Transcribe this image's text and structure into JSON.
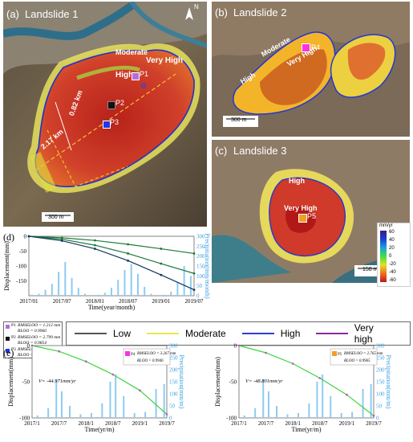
{
  "panels": {
    "a": {
      "tag": "(a)",
      "title": "Landslide 1",
      "zones": {
        "moderate": "Moderate",
        "very_high": "Very High",
        "high": "High"
      },
      "points": [
        "P1",
        "P2",
        "P3"
      ],
      "dims": [
        "0.82 km",
        "2.17 km"
      ],
      "north": "N",
      "scale": "300 m",
      "b_mark": "B"
    },
    "b": {
      "tag": "(b)",
      "title": "Landslide 2",
      "zones": {
        "moderate": "Moderate",
        "very_high": "Very High",
        "high": "High"
      },
      "points": [
        "P4"
      ],
      "scale": "300 m"
    },
    "c": {
      "tag": "(c)",
      "title": "Landslide 3",
      "zones": {
        "high": "High",
        "very_high": "Very High"
      },
      "points": [
        "P5"
      ],
      "scale": "150 m"
    }
  },
  "colorbar": {
    "unit": "mm/yr",
    "ticks": [
      "60",
      "40",
      "20",
      "0",
      "-20",
      "-40",
      "-60"
    ]
  },
  "legend": {
    "items": [
      {
        "label": "Low",
        "color": "#555555"
      },
      {
        "label": "Moderate",
        "color": "#e8e84a"
      },
      {
        "label": "High",
        "color": "#2b3fd6"
      },
      {
        "label": "Very high",
        "color": "#8a2b9a"
      }
    ]
  },
  "stats": [
    {
      "point": "P1",
      "color": "#b26de0",
      "rmse": "RMSE",
      "rmse_sub": "LOO",
      "rmse_val": "= 1.212 mm",
      "r": "R",
      "r_sub": "LOO",
      "r_val": "= 0.9966"
    },
    {
      "point": "P2",
      "color": "#111111",
      "rmse": "RMSE",
      "rmse_sub": "LOO",
      "rmse_val": "= 2.799 mm",
      "r": "R",
      "r_sub": "LOO",
      "r_val": "= 0.9854"
    },
    {
      "point": "P3",
      "color": "#2038e6",
      "rmse": "RMSE",
      "rmse_sub": "LOO",
      "rmse_val": "= 4.811 mm",
      "r": "R",
      "r_sub": "LOO",
      "r_val": "= 0.9954"
    }
  ],
  "panel_d": {
    "tag": "(d)"
  },
  "panel_e": {
    "tag": "(e)"
  },
  "chart_data": [
    {
      "type": "line",
      "panel": "(d)",
      "xlabel": "Time(year/month)",
      "ylabel": "Displacement(mm)",
      "y2label": "Precipitation(mm/month)",
      "xticks": [
        "2017/01",
        "2017/07",
        "2018/01",
        "2018/07",
        "2019/01",
        "2019/07"
      ],
      "ylim": [
        -200,
        0
      ],
      "yticks": [
        0,
        -50,
        -100,
        -150
      ],
      "y2lim": [
        0,
        300
      ],
      "y2ticks": [
        300,
        250,
        200,
        150,
        100,
        50,
        0
      ],
      "x_range": [
        2017.0,
        2019.5
      ],
      "series": [
        {
          "name": "P1",
          "color": "#1b7a3a",
          "x": [
            2017.0,
            2017.5,
            2018.0,
            2018.5,
            2019.0,
            2019.5
          ],
          "values": [
            0,
            -5,
            -14,
            -27,
            -42,
            -58
          ]
        },
        {
          "name": "P2",
          "color": "#1b7a3a",
          "x": [
            2017.0,
            2017.5,
            2018.0,
            2018.5,
            2019.0,
            2019.5
          ],
          "values": [
            0,
            -10,
            -30,
            -58,
            -92,
            -125
          ]
        },
        {
          "name": "P3",
          "color": "#14365e",
          "x": [
            2017.0,
            2017.5,
            2018.0,
            2018.5,
            2019.0,
            2019.5
          ],
          "values": [
            0,
            -15,
            -42,
            -82,
            -130,
            -180
          ]
        }
      ],
      "precipitation": {
        "x": [
          2017.05,
          2017.15,
          2017.25,
          2017.35,
          2017.45,
          2017.55,
          2017.65,
          2017.75,
          2017.85,
          2018.05,
          2018.15,
          2018.25,
          2018.35,
          2018.45,
          2018.55,
          2018.65,
          2018.75,
          2018.85,
          2019.05,
          2019.15,
          2019.25,
          2019.35,
          2019.45
        ],
        "values": [
          5,
          10,
          30,
          60,
          120,
          170,
          90,
          40,
          10,
          5,
          15,
          40,
          80,
          130,
          160,
          110,
          45,
          10,
          5,
          20,
          70,
          150,
          100
        ]
      }
    },
    {
      "type": "line",
      "panel": "(e) P4",
      "xlabel": "Time(yr/m)",
      "ylabel": "Displacement(mm)",
      "y2label": "Precipitation(mm/m)",
      "rate": "V= -44.971mm/yr",
      "point": "P4",
      "rmse_val": "= 3.267 mm",
      "r_val": "= 0.9946",
      "xticks": [
        "2017/1",
        "2017/7",
        "2018/1",
        "2018/7",
        "2019/1",
        "2019/7"
      ],
      "ylim": [
        -100,
        0
      ],
      "yticks": [
        0,
        -50,
        -100
      ],
      "y2lim": [
        0,
        300
      ],
      "y2ticks": [
        300,
        250,
        200,
        150,
        100,
        50,
        0
      ],
      "x_range": [
        2017.0,
        2019.5
      ],
      "series": [
        {
          "name": "P4",
          "color": "#3cd43c",
          "x": [
            2017.0,
            2017.5,
            2018.0,
            2018.5,
            2019.0,
            2019.5
          ],
          "values": [
            0,
            -8,
            -22,
            -40,
            -62,
            -95
          ]
        }
      ],
      "precipitation": {
        "x": [
          2017.1,
          2017.3,
          2017.45,
          2017.55,
          2017.7,
          2017.9,
          2018.1,
          2018.3,
          2018.45,
          2018.55,
          2018.7,
          2018.9,
          2019.1,
          2019.3,
          2019.45
        ],
        "values": [
          10,
          40,
          160,
          110,
          50,
          15,
          20,
          60,
          150,
          180,
          90,
          20,
          25,
          120,
          140
        ]
      }
    },
    {
      "type": "line",
      "panel": "(e) P5",
      "xlabel": "Time(yr/m)",
      "ylabel": "Displacement(mm)",
      "y2label": "Precipitation(mm/m)",
      "rate": "V= -48.801mm/yr",
      "point": "P5",
      "rmse_val": "= 2.765 mm",
      "r_val": "= 0.9965",
      "xticks": [
        "2017/1",
        "2017/7",
        "2018/1",
        "2018/7",
        "2019/1",
        "2019/7"
      ],
      "ylim": [
        -100,
        0
      ],
      "yticks": [
        0,
        -50,
        -100
      ],
      "y2lim": [
        0,
        300
      ],
      "y2ticks": [
        300,
        250,
        200,
        150,
        100,
        50,
        0
      ],
      "x_range": [
        2017.0,
        2019.5
      ],
      "series": [
        {
          "name": "P5",
          "color": "#3cd43c",
          "x": [
            2017.0,
            2017.5,
            2018.0,
            2018.5,
            2019.0,
            2019.5
          ],
          "values": [
            0,
            -10,
            -25,
            -45,
            -68,
            -97
          ]
        }
      ],
      "precipitation": {
        "x": [
          2017.1,
          2017.3,
          2017.45,
          2017.55,
          2017.7,
          2017.9,
          2018.1,
          2018.3,
          2018.45,
          2018.55,
          2018.7,
          2018.9,
          2019.1,
          2019.3,
          2019.45
        ],
        "values": [
          10,
          40,
          160,
          110,
          50,
          15,
          20,
          60,
          150,
          180,
          90,
          20,
          25,
          120,
          140
        ]
      }
    }
  ]
}
